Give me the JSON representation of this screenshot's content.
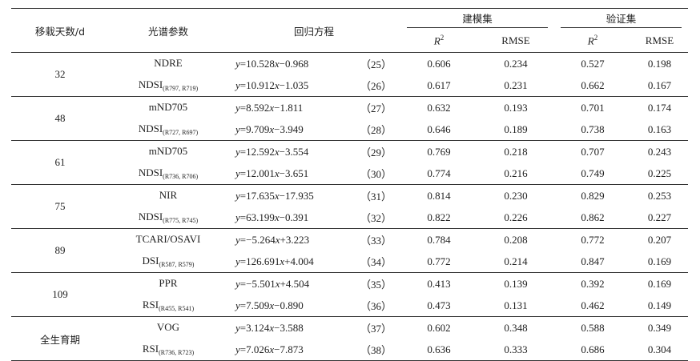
{
  "header": {
    "col_days": "移栽天数/d",
    "col_param": "光谱参数",
    "col_eq": "回归方程",
    "group_model": "建模集",
    "group_valid": "验证集",
    "r2_label": "R",
    "r2_sup": "2",
    "rmse_label": "RMSE"
  },
  "groups": [
    {
      "day": "32",
      "rows": [
        {
          "param": "NDRE",
          "sub": "",
          "eq": "=10.528x−0.968",
          "num": "（25）",
          "m_r2": "0.606",
          "m_rmse": "0.234",
          "v_r2": "0.527",
          "v_rmse": "0.198"
        },
        {
          "param": "NDSI",
          "sub": "(R797, R719)",
          "eq": "=10.912x−1.035",
          "num": "（26）",
          "m_r2": "0.617",
          "m_rmse": "0.231",
          "v_r2": "0.662",
          "v_rmse": "0.167"
        }
      ]
    },
    {
      "day": "48",
      "rows": [
        {
          "param": "mND705",
          "sub": "",
          "eq": "=8.592x−1.811",
          "num": "（27）",
          "m_r2": "0.632",
          "m_rmse": "0.193",
          "v_r2": "0.701",
          "v_rmse": "0.174"
        },
        {
          "param": "NDSI",
          "sub": "(R727, R697)",
          "eq": "=9.709x−3.949",
          "num": "（28）",
          "m_r2": "0.646",
          "m_rmse": "0.189",
          "v_r2": "0.738",
          "v_rmse": "0.163"
        }
      ]
    },
    {
      "day": "61",
      "rows": [
        {
          "param": "mND705",
          "sub": "",
          "eq": "=12.592x−3.554",
          "num": "（29）",
          "m_r2": "0.769",
          "m_rmse": "0.218",
          "v_r2": "0.707",
          "v_rmse": "0.243"
        },
        {
          "param": "NDSI",
          "sub": "(R736, R706)",
          "eq": "=12.001x−3.651",
          "num": "（30）",
          "m_r2": "0.774",
          "m_rmse": "0.216",
          "v_r2": "0.749",
          "v_rmse": "0.225"
        }
      ]
    },
    {
      "day": "75",
      "rows": [
        {
          "param": "NIR",
          "sub": "",
          "eq": "=17.635x−17.935",
          "num": "（31）",
          "m_r2": "0.814",
          "m_rmse": "0.230",
          "v_r2": "0.829",
          "v_rmse": "0.253"
        },
        {
          "param": "NDSI",
          "sub": "(R775, R745)",
          "eq": "=63.199x−0.391",
          "num": "（32）",
          "m_r2": "0.822",
          "m_rmse": "0.226",
          "v_r2": "0.862",
          "v_rmse": "0.227"
        }
      ]
    },
    {
      "day": "89",
      "rows": [
        {
          "param": "TCARI/OSAVI",
          "sub": "",
          "eq": "=−5.264x+3.223",
          "num": "（33）",
          "m_r2": "0.784",
          "m_rmse": "0.208",
          "v_r2": "0.772",
          "v_rmse": "0.207"
        },
        {
          "param": "DSI",
          "sub": "(R587, R579)",
          "eq": "=126.691x+4.004",
          "num": "（34）",
          "m_r2": "0.772",
          "m_rmse": "0.214",
          "v_r2": "0.847",
          "v_rmse": "0.169"
        }
      ]
    },
    {
      "day": "109",
      "rows": [
        {
          "param": "PPR",
          "sub": "",
          "eq": "=−5.501x+4.504",
          "num": "（35）",
          "m_r2": "0.413",
          "m_rmse": "0.139",
          "v_r2": "0.392",
          "v_rmse": "0.169"
        },
        {
          "param": "RSI",
          "sub": "(R455, R541)",
          "eq": "=7.509x−0.890",
          "num": "（36）",
          "m_r2": "0.473",
          "m_rmse": "0.131",
          "v_r2": "0.462",
          "v_rmse": "0.149"
        }
      ]
    },
    {
      "day": "全生育期",
      "cn": true,
      "rows": [
        {
          "param": "VOG",
          "sub": "",
          "eq": "=3.124x−3.588",
          "num": "（37）",
          "m_r2": "0.602",
          "m_rmse": "0.348",
          "v_r2": "0.588",
          "v_rmse": "0.349"
        },
        {
          "param": "RSI",
          "sub": "(R736, R723)",
          "eq": "=7.026x−7.873",
          "num": "（38）",
          "m_r2": "0.636",
          "m_rmse": "0.333",
          "v_r2": "0.686",
          "v_rmse": "0.304"
        }
      ]
    }
  ]
}
